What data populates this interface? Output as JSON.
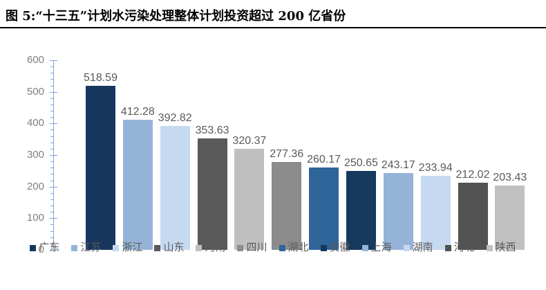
{
  "header": {
    "title": "图 5:“十三五”计划水污染处理整体计划投资超过 200 亿省份"
  },
  "chart_data": {
    "type": "bar",
    "title": "图 5:“十三五”计划水污染处理整体计划投资超过 200 亿省份",
    "categories": [
      "广东",
      "江苏",
      "浙江",
      "山东",
      "河南",
      "四川",
      "湖北",
      "安徽",
      "上海",
      "湖南",
      "河北",
      "陕西"
    ],
    "values": [
      518.59,
      412.28,
      392.82,
      353.63,
      320.37,
      277.36,
      260.17,
      250.65,
      243.17,
      233.94,
      212.02,
      203.43
    ],
    "value_labels": [
      "518.59",
      "412.28",
      "392.82",
      "353.63",
      "320.37",
      "277.36",
      "260.17",
      "250.65",
      "243.17",
      "233.94",
      "212.02",
      "203.43"
    ],
    "bar_colors": [
      "#17375E",
      "#95B3D7",
      "#C5D9F1",
      "#595959",
      "#BFBFBF",
      "#8C8C8C",
      "#2F6599",
      "#16395F",
      "#95B3D7",
      "#C5D9F1",
      "#525252",
      "#C0C0C0"
    ],
    "xlabel": "",
    "ylabel": "",
    "ylim": [
      0,
      600
    ],
    "ytick_major": 100,
    "ytick_minor": 20,
    "ytick_labels": [
      "0",
      "100",
      "200",
      "300",
      "400",
      "500",
      "600"
    ],
    "grid": false,
    "legend_position": "bottom",
    "colors": {
      "axis": "#7EA6D8",
      "tick_label": "#7F7F7F",
      "value_label": "#595959",
      "legend_label": "#595959",
      "title_text": "#000000",
      "title_rule": "#000000",
      "background": "#FFFFFF"
    }
  }
}
